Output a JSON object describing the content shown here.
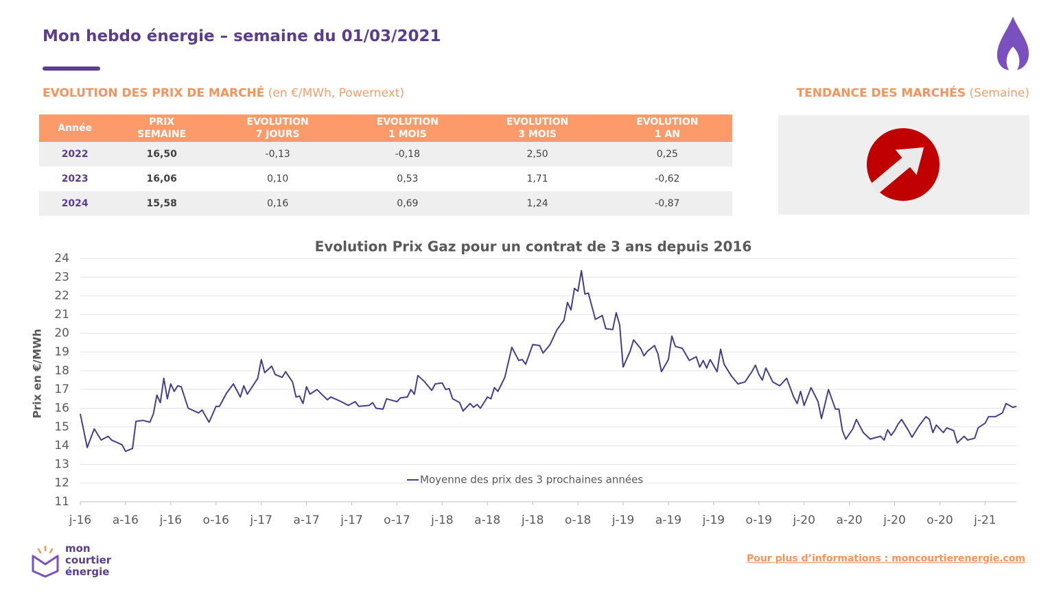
{
  "header": {
    "title": "Mon hebdo énergie – semaine du 01/03/2021"
  },
  "section_prices": {
    "title_bold": "EVOLUTION DES PRIX DE MARCHÉ",
    "title_light": "(en €/MWh, Powernext)"
  },
  "table": {
    "header": [
      [
        "Année"
      ],
      [
        "PRIX",
        "SEMAINE"
      ],
      [
        "EVOLUTION",
        "7 JOURS"
      ],
      [
        "EVOLUTION",
        "1 MOIS"
      ],
      [
        "EVOLUTION",
        "3 MOIS"
      ],
      [
        "EVOLUTION",
        "1 AN"
      ]
    ],
    "rows": [
      [
        "2022",
        "16,50",
        "-0,13",
        "-0,18",
        "2,50",
        "0,25"
      ],
      [
        "2023",
        "16,06",
        "0,10",
        "0,53",
        "1,71",
        "-0,62"
      ],
      [
        "2024",
        "15,58",
        "0,16",
        "0,69",
        "1,24",
        "-0,87"
      ]
    ]
  },
  "trend": {
    "title_bold": "TENDANCE DES MARCHÉS",
    "title_light": "(Semaine)"
  },
  "chart_data": {
    "type": "line",
    "title": "Evolution Prix Gaz pour un contrat de 3 ans depuis 2016",
    "y_label": "Prix en €/MWh",
    "x": [
      0,
      2,
      4,
      6,
      8,
      9,
      12,
      13,
      15,
      16,
      18,
      20,
      21,
      22,
      23,
      24,
      25,
      26,
      27,
      28,
      29,
      31,
      34,
      35,
      37,
      39,
      40,
      42,
      44,
      46,
      47,
      48,
      51,
      52,
      53,
      55,
      56,
      58,
      59,
      61,
      62,
      63,
      64,
      65,
      66,
      68,
      71,
      72,
      75,
      77,
      79,
      80,
      83,
      84,
      85,
      87,
      88,
      91,
      92,
      94,
      95,
      96,
      97,
      99,
      101,
      102,
      104,
      105,
      106,
      107,
      109,
      110,
      112,
      113,
      114,
      115,
      117,
      118,
      119,
      120,
      122,
      124,
      126,
      127,
      128,
      130,
      132,
      133,
      135,
      137,
      139,
      140,
      141,
      142,
      143,
      144,
      145,
      146,
      148,
      150,
      151,
      153,
      154,
      155,
      156,
      158,
      159,
      161,
      162,
      163,
      165,
      166,
      167,
      169,
      170,
      171,
      173,
      175,
      177,
      178,
      179,
      180,
      181,
      183,
      184,
      185,
      187,
      189,
      191,
      193,
      194,
      195,
      196,
      197,
      199,
      201,
      203,
      205,
      206,
      207,
      208,
      210,
      212,
      213,
      215,
      217,
      218,
      219,
      220,
      222,
      223,
      225,
      227,
      230,
      231,
      232,
      233,
      234,
      235,
      236,
      238,
      239,
      241,
      243,
      244,
      245,
      246,
      248,
      249,
      251,
      252,
      254,
      255,
      257,
      258,
      260,
      261,
      263,
      265,
      266,
      268,
      269
    ],
    "series": [
      {
        "name": "Moyenne des prix des 3 prochaines années",
        "color": "#463c8c",
        "values": [
          15.7,
          13.9,
          14.9,
          14.3,
          14.5,
          14.3,
          14.05,
          13.7,
          13.85,
          15.3,
          15.35,
          15.25,
          15.7,
          16.7,
          16.3,
          17.6,
          16.5,
          17.3,
          16.9,
          17.2,
          17.15,
          16.0,
          15.75,
          15.9,
          15.25,
          16.1,
          16.1,
          16.8,
          17.3,
          16.6,
          17.2,
          16.75,
          17.6,
          18.6,
          17.9,
          18.25,
          17.8,
          17.65,
          17.95,
          17.4,
          16.6,
          16.65,
          16.25,
          17.15,
          16.75,
          17.0,
          16.45,
          16.6,
          16.35,
          16.15,
          16.35,
          16.1,
          16.15,
          16.3,
          16.0,
          15.95,
          16.5,
          16.35,
          16.55,
          16.6,
          17.0,
          16.75,
          17.75,
          17.4,
          16.95,
          17.3,
          17.35,
          17.0,
          17.05,
          16.5,
          16.3,
          15.85,
          16.25,
          16.05,
          16.2,
          16.0,
          16.6,
          16.5,
          17.1,
          16.9,
          17.65,
          19.25,
          18.55,
          18.6,
          18.35,
          19.4,
          19.35,
          18.95,
          19.4,
          20.2,
          20.7,
          21.65,
          21.25,
          22.4,
          22.25,
          23.35,
          22.1,
          22.15,
          20.75,
          20.95,
          20.25,
          20.2,
          21.1,
          20.45,
          18.2,
          19.05,
          19.65,
          19.2,
          18.8,
          19.05,
          19.35,
          18.9,
          17.95,
          18.6,
          19.85,
          19.3,
          19.2,
          18.55,
          18.75,
          18.2,
          18.55,
          18.15,
          18.6,
          17.95,
          19.15,
          18.35,
          17.75,
          17.3,
          17.4,
          17.95,
          18.3,
          17.8,
          17.5,
          18.15,
          17.4,
          17.2,
          17.6,
          16.6,
          16.25,
          16.9,
          16.15,
          17.1,
          16.35,
          15.45,
          17.0,
          15.95,
          15.95,
          14.8,
          14.35,
          14.9,
          15.4,
          14.7,
          14.35,
          14.5,
          14.3,
          14.85,
          14.55,
          14.8,
          15.15,
          15.4,
          14.8,
          14.45,
          15.05,
          15.55,
          15.4,
          14.7,
          15.1,
          14.7,
          14.95,
          14.8,
          14.15,
          14.5,
          14.3,
          14.4,
          14.95,
          15.2,
          15.55,
          15.55,
          15.75,
          16.25,
          16.05,
          16.1
        ]
      }
    ],
    "xlim": [
      0,
      269
    ],
    "xticks": [
      {
        "value": 0,
        "label": "j-16"
      },
      {
        "value": 13,
        "label": "a-16"
      },
      {
        "value": 26,
        "label": "j-16"
      },
      {
        "value": 39,
        "label": "o-16"
      },
      {
        "value": 52,
        "label": "j-17"
      },
      {
        "value": 65,
        "label": "a-17"
      },
      {
        "value": 78,
        "label": "j-17"
      },
      {
        "value": 91,
        "label": "o-17"
      },
      {
        "value": 104,
        "label": "j-18"
      },
      {
        "value": 117,
        "label": "a-18"
      },
      {
        "value": 130,
        "label": "j-18"
      },
      {
        "value": 143,
        "label": "o-18"
      },
      {
        "value": 156,
        "label": "j-19"
      },
      {
        "value": 169,
        "label": "a-19"
      },
      {
        "value": 182,
        "label": "j-19"
      },
      {
        "value": 195,
        "label": "o-19"
      },
      {
        "value": 208,
        "label": "j-20"
      },
      {
        "value": 221,
        "label": "a-20"
      },
      {
        "value": 234,
        "label": "j-20"
      },
      {
        "value": 247,
        "label": "o-20"
      },
      {
        "value": 260,
        "label": "j-21"
      }
    ],
    "ylim": [
      11,
      24
    ],
    "yticks": [
      11,
      12,
      13,
      14,
      15,
      16,
      17,
      18,
      19,
      20,
      21,
      22,
      23,
      24
    ],
    "grid": true,
    "legend": "bottom"
  },
  "logo": {
    "lines": [
      "mon",
      "courtier",
      "énergie"
    ]
  },
  "footer": {
    "link": "Pour plus d’informations : moncourtierenergie.com"
  }
}
